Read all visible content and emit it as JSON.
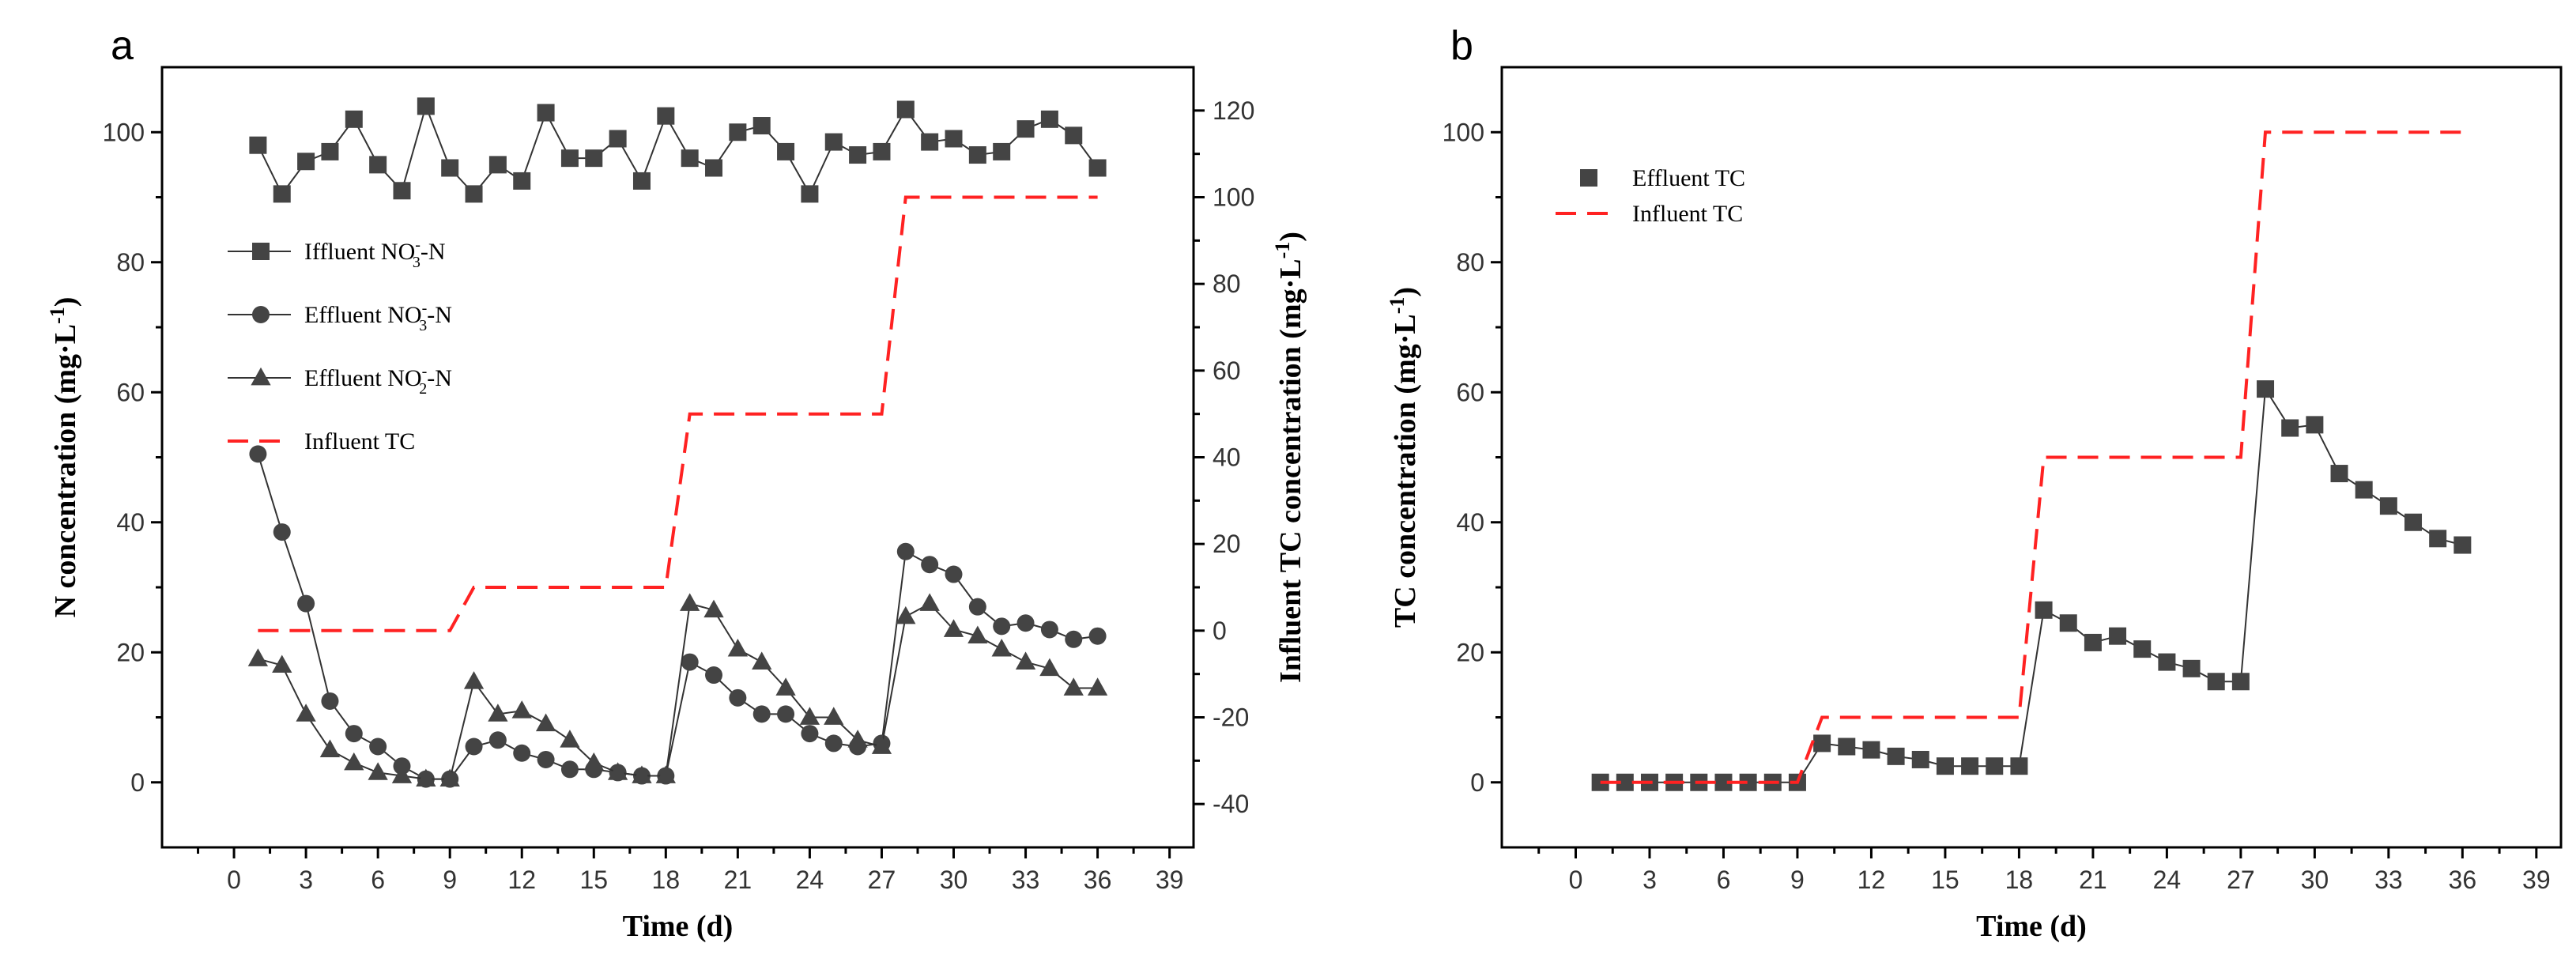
{
  "chart_data": [
    {
      "panel": "a",
      "type": "line",
      "xlabel": "Time (d)",
      "ylabel": "N concentration (mg·L⁻¹)",
      "ylabel_right": "Influent TC concentration (mg·L⁻¹)",
      "xlim": [
        -3,
        40
      ],
      "ylim": [
        -10,
        110
      ],
      "ylim_right": [
        -50,
        130
      ],
      "xticks": [
        0,
        3,
        6,
        9,
        12,
        15,
        18,
        21,
        24,
        27,
        30,
        33,
        36,
        39
      ],
      "yticks": [
        0,
        20,
        40,
        60,
        80,
        100
      ],
      "yticks_right": [
        -40,
        -20,
        0,
        20,
        40,
        60,
        80,
        100,
        120
      ],
      "xtick_labels": [
        "0",
        "3",
        "6",
        "9",
        "12",
        "15",
        "18",
        "21",
        "24",
        "27",
        "30",
        "33",
        "36",
        "39"
      ],
      "ytick_labels": [
        "0",
        "20",
        "40",
        "60",
        "80",
        "100"
      ],
      "ytick_labels_right": [
        "-40",
        "-20",
        "0",
        "20",
        "40",
        "60",
        "80",
        "100",
        "120"
      ],
      "legend_position": "middle-left",
      "series": [
        {
          "name": "Iffluent NO₃⁻-N",
          "marker": "square",
          "color": "#444444",
          "axis": "left",
          "x": [
            1,
            2,
            3,
            4,
            5,
            6,
            7,
            8,
            9,
            10,
            11,
            12,
            13,
            14,
            15,
            16,
            17,
            18,
            19,
            20,
            21,
            22,
            23,
            24,
            25,
            26,
            27,
            28,
            29,
            30,
            31,
            32,
            33,
            34,
            35,
            36
          ],
          "values": [
            98,
            90.5,
            95.5,
            97,
            102,
            95,
            91,
            104,
            94.5,
            90.5,
            95,
            92.5,
            103,
            96,
            96,
            99,
            92.5,
            102.5,
            96,
            94.5,
            100,
            101,
            97,
            90.5,
            98.5,
            96.5,
            97,
            103.5,
            98.5,
            99,
            96.5,
            97,
            100.5,
            102,
            99.5,
            94.5
          ]
        },
        {
          "name": "Effluent NO₃⁻-N",
          "marker": "circle",
          "color": "#444444",
          "axis": "left",
          "x": [
            1,
            2,
            3,
            4,
            5,
            6,
            7,
            8,
            9,
            10,
            11,
            12,
            13,
            14,
            15,
            16,
            17,
            18,
            19,
            20,
            21,
            22,
            23,
            24,
            25,
            26,
            27,
            28,
            29,
            30,
            31,
            32,
            33,
            34,
            35,
            36
          ],
          "values": [
            50.5,
            38.5,
            27.5,
            12.5,
            7.5,
            5.5,
            2.5,
            0.5,
            0.5,
            5.5,
            6.5,
            4.5,
            3.5,
            2,
            2,
            1.5,
            1,
            1,
            18.5,
            16.5,
            13,
            10.5,
            10.5,
            7.5,
            6,
            5.5,
            6,
            35.5,
            33.5,
            32,
            27,
            24,
            24.5,
            23.5,
            22,
            22.5
          ]
        },
        {
          "name": "Effluent NO₂⁻-N",
          "marker": "triangle",
          "color": "#444444",
          "axis": "left",
          "x": [
            1,
            2,
            3,
            4,
            5,
            6,
            7,
            8,
            9,
            10,
            11,
            12,
            13,
            14,
            15,
            16,
            17,
            18,
            19,
            20,
            21,
            22,
            23,
            24,
            25,
            26,
            27,
            28,
            29,
            30,
            31,
            32,
            33,
            34,
            35,
            36
          ],
          "values": [
            19,
            18,
            10.5,
            5,
            3,
            1.5,
            1,
            0.5,
            0.5,
            15.5,
            10.5,
            11,
            9,
            6.5,
            3,
            1.5,
            1,
            1,
            27.5,
            26.5,
            20.5,
            18.5,
            14.5,
            10,
            10,
            6.5,
            5.5,
            25.5,
            27.5,
            23.5,
            22.5,
            20.5,
            18.5,
            17.5,
            14.5,
            14.5
          ]
        },
        {
          "name": "Influent TC",
          "style": "dashed",
          "color": "#ff2222",
          "axis": "right",
          "x": [
            1,
            9,
            10,
            18,
            19,
            27,
            28,
            36
          ],
          "values": [
            0,
            0,
            10,
            10,
            50,
            50,
            100,
            100
          ]
        }
      ]
    },
    {
      "panel": "b",
      "type": "line",
      "xlabel": "Time (d)",
      "ylabel": "TC concentration (mg·L⁻¹)",
      "xlim": [
        -3,
        40
      ],
      "ylim": [
        -10,
        110
      ],
      "xticks": [
        0,
        3,
        6,
        9,
        12,
        15,
        18,
        21,
        24,
        27,
        30,
        33,
        36,
        39
      ],
      "yticks": [
        0,
        20,
        40,
        60,
        80,
        100
      ],
      "xtick_labels": [
        "0",
        "3",
        "6",
        "9",
        "12",
        "15",
        "18",
        "21",
        "24",
        "27",
        "30",
        "33",
        "36",
        "39"
      ],
      "ytick_labels": [
        "0",
        "20",
        "40",
        "60",
        "80",
        "100"
      ],
      "legend_position": "top-left",
      "series": [
        {
          "name": "Effluent TC",
          "marker": "square",
          "color": "#444444",
          "x": [
            1,
            2,
            3,
            4,
            5,
            6,
            7,
            8,
            9,
            10,
            11,
            12,
            13,
            14,
            15,
            16,
            17,
            18,
            19,
            20,
            21,
            22,
            23,
            24,
            25,
            26,
            27,
            28,
            29,
            30,
            31,
            32,
            33,
            34,
            35,
            36
          ],
          "values": [
            0,
            0,
            0,
            0,
            0,
            0,
            0,
            0,
            0,
            6,
            5.5,
            5,
            4,
            3.5,
            2.5,
            2.5,
            2.5,
            2.5,
            26.5,
            24.5,
            21.5,
            22.5,
            20.5,
            18.5,
            17.5,
            15.5,
            15.5,
            60.5,
            54.5,
            55,
            47.5,
            45,
            42.5,
            40,
            37.5,
            36.5
          ]
        },
        {
          "name": "Influent TC",
          "style": "dashed",
          "color": "#ff2222",
          "x": [
            1,
            9,
            10,
            18,
            19,
            27,
            28,
            36
          ],
          "values": [
            0,
            0,
            10,
            10,
            50,
            50,
            100,
            100
          ]
        }
      ]
    }
  ]
}
